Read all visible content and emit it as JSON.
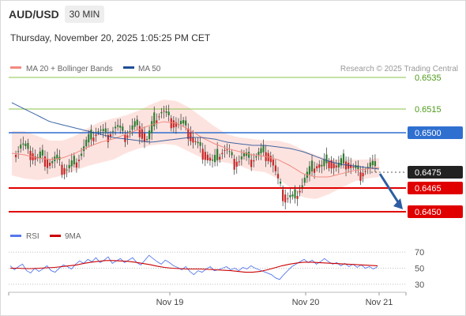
{
  "header": {
    "symbol": "AUD/USD",
    "timeframe": "30 MIN",
    "datetime": "Thursday, November 20, 2025 1:05:25 PM CET"
  },
  "legend": {
    "ma20": "MA 20 + Bollinger Bands",
    "ma50": "MA 50",
    "copyright": "Research © 2025 Trading Central",
    "rsi": "RSI",
    "ma9": "9MA"
  },
  "colors": {
    "ma20": "#f08a80",
    "bb_fill": "#fde0dc",
    "ma50": "#1f4e96",
    "green_level": "#8bc34a",
    "blue_level": "#2f6fd0",
    "red_level": "#e00000",
    "candle_up": "#2e7d32",
    "candle_down": "#c62828",
    "rsi": "#5577ee",
    "rsi_ma": "#cc0000",
    "arrow": "#2d5da3"
  },
  "chart_data": [
    {
      "type": "candlestick",
      "x_labels": [
        "Nov 19",
        "Nov 20",
        "Nov 21"
      ],
      "ylim": [
        0.6443,
        0.6538
      ],
      "levels": [
        {
          "value": 0.6535,
          "label": "0.6535",
          "kind": "resistance"
        },
        {
          "value": 0.6515,
          "label": "0.6515",
          "kind": "resistance"
        },
        {
          "value": 0.65,
          "label": "0.6500",
          "kind": "pivot"
        },
        {
          "value": 0.6475,
          "label": "0.6475",
          "kind": "last"
        },
        {
          "value": 0.6465,
          "label": "0.6465",
          "kind": "support"
        },
        {
          "value": 0.645,
          "label": "0.6450",
          "kind": "support"
        }
      ],
      "close_path": [
        0.6486,
        0.6489,
        0.6493,
        0.649,
        0.6488,
        0.6485,
        0.6483,
        0.6486,
        0.6484,
        0.648,
        0.6482,
        0.6484,
        0.6479,
        0.6476,
        0.6478,
        0.648,
        0.6482,
        0.6486,
        0.6491,
        0.6495,
        0.6497,
        0.65,
        0.6502,
        0.65,
        0.6498,
        0.6501,
        0.6504,
        0.6503,
        0.6499,
        0.6498,
        0.6502,
        0.6505,
        0.6504,
        0.65,
        0.6494,
        0.65,
        0.6507,
        0.6511,
        0.6514,
        0.6512,
        0.6509,
        0.6507,
        0.6505,
        0.6506,
        0.6504,
        0.65,
        0.6495,
        0.6493,
        0.649,
        0.6487,
        0.6484,
        0.6481,
        0.6483,
        0.6487,
        0.649,
        0.6488,
        0.6484,
        0.6481,
        0.6483,
        0.6486,
        0.6484,
        0.6482,
        0.6485,
        0.6487,
        0.6488,
        0.6487,
        0.6484,
        0.6478,
        0.6468,
        0.6462,
        0.6458,
        0.646,
        0.6458,
        0.6463,
        0.6467,
        0.6472,
        0.6475,
        0.6478,
        0.648,
        0.6478,
        0.6481,
        0.6483,
        0.648,
        0.6478,
        0.648,
        0.6482,
        0.648,
        0.6478,
        0.6477,
        0.6474,
        0.6476,
        0.6478,
        0.648,
        0.6477
      ],
      "ma50_path": [
        0.6519,
        0.6515,
        0.6511,
        0.6507,
        0.6505,
        0.6503,
        0.6501,
        0.6499,
        0.6497,
        0.6496,
        0.6495,
        0.6494,
        0.6495,
        0.6496,
        0.6497,
        0.6497,
        0.6496,
        0.6494,
        0.6493,
        0.6492,
        0.6492,
        0.6491,
        0.649,
        0.6488,
        0.6485,
        0.6482,
        0.648,
        0.6479,
        0.6478,
        0.6477
      ],
      "ma20_path": [
        0.6487,
        0.6486,
        0.6484,
        0.6483,
        0.6484,
        0.6487,
        0.6491,
        0.6494,
        0.6496,
        0.6499,
        0.6502,
        0.6505,
        0.6507,
        0.6506,
        0.6502,
        0.6497,
        0.6493,
        0.649,
        0.6488,
        0.6486,
        0.6485,
        0.6483,
        0.6479,
        0.6474,
        0.6472,
        0.6472,
        0.6474,
        0.6476,
        0.6477,
        0.6478
      ],
      "bb_half_width": [
        0.0014,
        0.0015,
        0.0014,
        0.0012,
        0.0011,
        0.0011,
        0.0012,
        0.0013,
        0.0013,
        0.0012,
        0.0012,
        0.0013,
        0.0014,
        0.0014,
        0.0014,
        0.0013,
        0.0011,
        0.0009,
        0.0009,
        0.001,
        0.001,
        0.0012,
        0.0014,
        0.0015,
        0.0014,
        0.0011,
        0.0009,
        0.0007,
        0.0006,
        0.0006
      ],
      "projection": {
        "from": 0.6475,
        "to": 0.645
      }
    },
    {
      "type": "line",
      "name_series": [
        "RSI",
        "9MA"
      ],
      "ylim": [
        25,
        75
      ],
      "ticks": [
        70,
        50,
        30
      ],
      "rsi_path": [
        53,
        48,
        52,
        55,
        47,
        44,
        50,
        46,
        49,
        53,
        47,
        45,
        50,
        54,
        52,
        49,
        55,
        59,
        56,
        61,
        58,
        63,
        57,
        60,
        64,
        56,
        59,
        62,
        57,
        60,
        63,
        57,
        54,
        60,
        66,
        62,
        58,
        55,
        60,
        57,
        53,
        51,
        48,
        52,
        46,
        42,
        47,
        45,
        49,
        52,
        47,
        48,
        50,
        52,
        48,
        50,
        47,
        51,
        49,
        53,
        50,
        48,
        46,
        44,
        42,
        38,
        36,
        42,
        47,
        52,
        55,
        58,
        61,
        57,
        60,
        55,
        58,
        62,
        58,
        55,
        57,
        53,
        56,
        52,
        55,
        51,
        54,
        50,
        52,
        49,
        52
      ],
      "rsi_ma_path": [
        50,
        50,
        49.5,
        49.5,
        50,
        50.5,
        51,
        52,
        53,
        54,
        56,
        57.5,
        58.5,
        59.5,
        59.5,
        59,
        58.5,
        57.5,
        56,
        54.5,
        52.5,
        51,
        50,
        49.5,
        49,
        49,
        49,
        48.5,
        48,
        47.5,
        47,
        46,
        45,
        45,
        46,
        48,
        50.5,
        53,
        55,
        56.5,
        57.5,
        57.5,
        57,
        56.5,
        56,
        55.5,
        55,
        54.5,
        54,
        53.5,
        53
      ]
    }
  ]
}
